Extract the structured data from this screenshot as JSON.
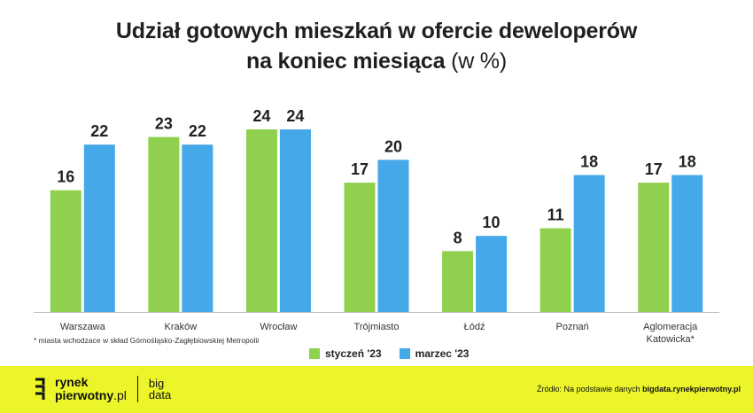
{
  "title": {
    "line1": "Udział gotowych mieszkań w ofercie deweloperów",
    "line2": "na koniec miesiąca",
    "unit": "(w %)"
  },
  "chart_data": {
    "type": "bar",
    "title": "Udział gotowych mieszkań w ofercie deweloperów na koniec miesiąca (w %)",
    "categories": [
      [
        "Warszawa"
      ],
      [
        "Kraków"
      ],
      [
        "Wrocław"
      ],
      [
        "Trójmiasto"
      ],
      [
        "Łódź"
      ],
      [
        "Poznań"
      ],
      [
        "Aglomeracja",
        "Katowicka*"
      ]
    ],
    "series": [
      {
        "name": "styczeń '23",
        "values": [
          16,
          23,
          24,
          17,
          8,
          11,
          17
        ],
        "color": "#8fd14f"
      },
      {
        "name": "marzec '23",
        "values": [
          22,
          22,
          24,
          20,
          10,
          18,
          18
        ],
        "color": "#45a8e8"
      }
    ],
    "ylim": [
      0,
      24
    ],
    "grid": false,
    "legend": "bottom-center"
  },
  "footnote": "* miasta wchodzace w skład Górnośląsko-Zagłębiowskiej Metropolii",
  "footer": {
    "background": "#ecf52a",
    "brand_line1": "rynek",
    "brand_line2": "pierwotny",
    "brand_suffix": ".pl",
    "brand2_line1": "big",
    "brand2_line2": "data",
    "source_prefix": "Źródło: Na podstawie danych",
    "source_site": "bigdata.rynekpierwotny.pl"
  }
}
